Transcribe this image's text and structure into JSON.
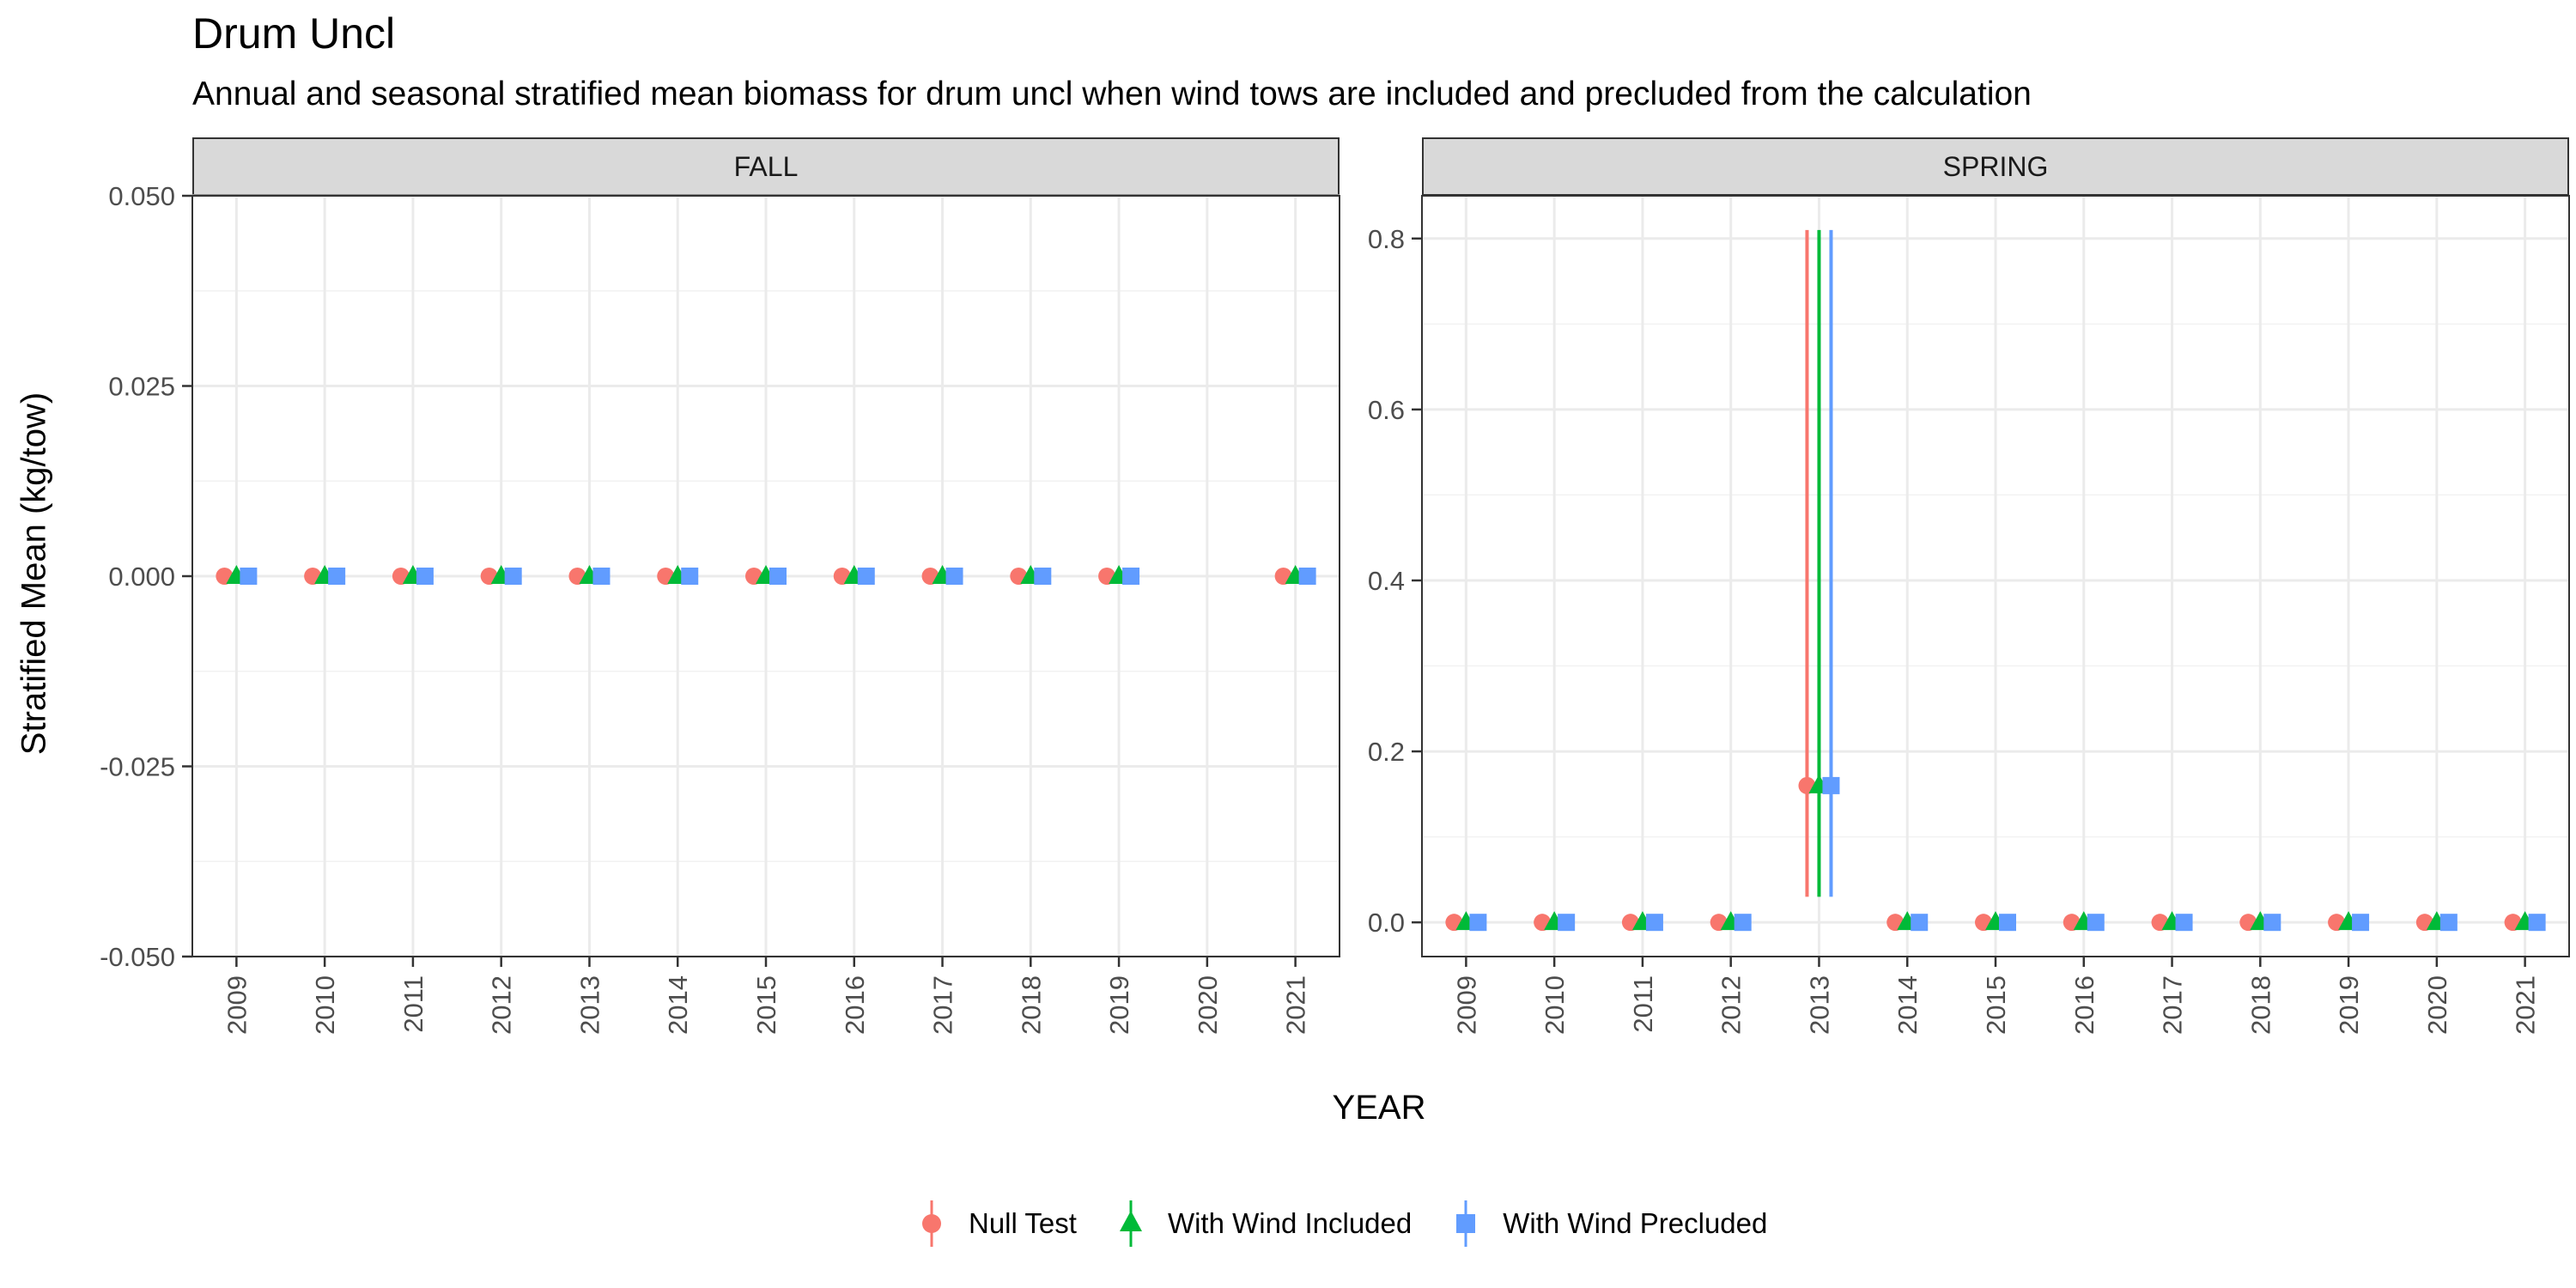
{
  "chart_data": {
    "type": "scatter",
    "title": "Drum Uncl",
    "subtitle": "Annual and seasonal stratified mean biomass for drum uncl when wind tows are included and precluded from the calculation",
    "xlabel": "YEAR",
    "ylabel": "Stratified Mean (kg/tow)",
    "legend_position": "bottom",
    "grid": true,
    "categories": [
      "2009",
      "2010",
      "2011",
      "2012",
      "2013",
      "2014",
      "2015",
      "2016",
      "2017",
      "2018",
      "2019",
      "2020",
      "2021"
    ],
    "series_styles": [
      {
        "name": "Null Test",
        "color": "#F8766D",
        "shape": "circle"
      },
      {
        "name": "With Wind Included",
        "color": "#00BA38",
        "shape": "triangle"
      },
      {
        "name": "With Wind Precluded",
        "color": "#619CFF",
        "shape": "square"
      }
    ],
    "panels": [
      {
        "name": "FALL",
        "ylim": [
          -0.05,
          0.05
        ],
        "yticks": [
          -0.05,
          -0.025,
          0,
          0.025,
          0.05
        ],
        "ytick_labels": [
          "-0.050",
          "-0.025",
          "0.000",
          "0.025",
          "0.050"
        ],
        "series": [
          {
            "name": "Null Test",
            "values": [
              0,
              0,
              0,
              0,
              0,
              0,
              0,
              0,
              0,
              0,
              0,
              null,
              0
            ],
            "lower": [
              0,
              0,
              0,
              0,
              0,
              0,
              0,
              0,
              0,
              0,
              0,
              null,
              0
            ],
            "upper": [
              0,
              0,
              0,
              0,
              0,
              0,
              0,
              0,
              0,
              0,
              0,
              null,
              0
            ]
          },
          {
            "name": "With Wind Included",
            "values": [
              0,
              0,
              0,
              0,
              0,
              0,
              0,
              0,
              0,
              0,
              0,
              null,
              0
            ],
            "lower": [
              0,
              0,
              0,
              0,
              0,
              0,
              0,
              0,
              0,
              0,
              0,
              null,
              0
            ],
            "upper": [
              0,
              0,
              0,
              0,
              0,
              0,
              0,
              0,
              0,
              0,
              0,
              null,
              0
            ]
          },
          {
            "name": "With Wind Precluded",
            "values": [
              0,
              0,
              0,
              0,
              0,
              0,
              0,
              0,
              0,
              0,
              0,
              null,
              0
            ],
            "lower": [
              0,
              0,
              0,
              0,
              0,
              0,
              0,
              0,
              0,
              0,
              0,
              null,
              0
            ],
            "upper": [
              0,
              0,
              0,
              0,
              0,
              0,
              0,
              0,
              0,
              0,
              0,
              null,
              0
            ]
          }
        ]
      },
      {
        "name": "SPRING",
        "ylim": [
          -0.04,
          0.85
        ],
        "yticks": [
          0,
          0.2,
          0.4,
          0.6,
          0.8
        ],
        "ytick_labels": [
          "0.0",
          "0.2",
          "0.4",
          "0.6",
          "0.8"
        ],
        "series": [
          {
            "name": "Null Test",
            "values": [
              0,
              0,
              0,
              0,
              0.16,
              0,
              0,
              0,
              0,
              0,
              0,
              0,
              0
            ],
            "lower": [
              0,
              0,
              0,
              0,
              0.03,
              0,
              0,
              0,
              0,
              0,
              0,
              0,
              0
            ],
            "upper": [
              0,
              0,
              0,
              0,
              0.81,
              0,
              0,
              0,
              0,
              0,
              0,
              0,
              0
            ]
          },
          {
            "name": "With Wind Included",
            "values": [
              0,
              0,
              0,
              0,
              0.16,
              0,
              0,
              0,
              0,
              0,
              0,
              0,
              0
            ],
            "lower": [
              0,
              0,
              0,
              0,
              0.03,
              0,
              0,
              0,
              0,
              0,
              0,
              0,
              0
            ],
            "upper": [
              0,
              0,
              0,
              0,
              0.81,
              0,
              0,
              0,
              0,
              0,
              0,
              0,
              0
            ]
          },
          {
            "name": "With Wind Precluded",
            "values": [
              0,
              0,
              0,
              0,
              0.16,
              0,
              0,
              0,
              0,
              0,
              0,
              0,
              0
            ],
            "lower": [
              0,
              0,
              0,
              0,
              0.03,
              0,
              0,
              0,
              0,
              0,
              0,
              0,
              0
            ],
            "upper": [
              0,
              0,
              0,
              0,
              0.81,
              0,
              0,
              0,
              0,
              0,
              0,
              0,
              0
            ]
          }
        ]
      }
    ]
  }
}
